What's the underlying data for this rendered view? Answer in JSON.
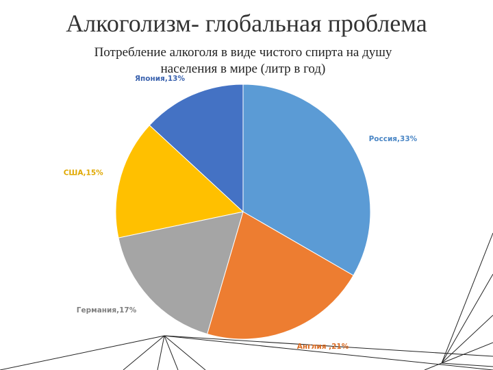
{
  "slide": {
    "title": "Алкоголизм- глобальная проблема"
  },
  "chart_data": {
    "type": "pie",
    "title": "Потребление алкоголя в виде чистого спирта на душу населения в мире (литр в год)",
    "values": [
      33,
      21,
      17,
      15,
      13
    ],
    "value_labels": [
      "Россия,33%",
      "Англия ,21%",
      "Германия,17%",
      "США,15%",
      "Япония,13%"
    ],
    "colors": [
      "#5b9bd5",
      "#ed7d31",
      "#a5a5a5",
      "#ffc000",
      "#4472c4"
    ],
    "label_colors": [
      "#4a86c5",
      "#d9691f",
      "#7f7f7f",
      "#e0a800",
      "#3a62ae"
    ]
  }
}
